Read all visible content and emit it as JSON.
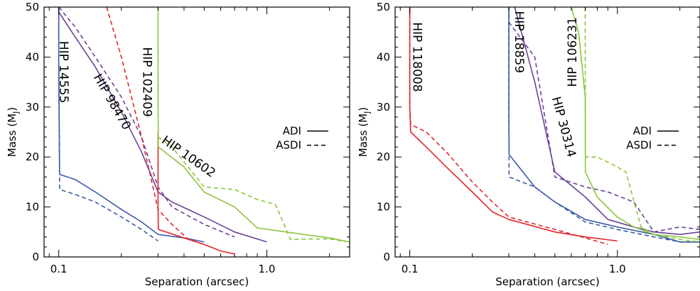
{
  "chart_data": [
    {
      "type": "line",
      "xlabel": "Separation (arcsec)",
      "ylabel": "Mass (M",
      "ylabel_sub": "J",
      "ylabel_close": ")",
      "x_scale": "log",
      "xlim": [
        0.085,
        2.5
      ],
      "ylim": [
        0,
        50
      ],
      "x_ticks": [
        {
          "value": 0.1,
          "label": "0.1"
        },
        {
          "value": 1.0,
          "label": "1.0"
        }
      ],
      "y_ticks": [
        0,
        10,
        20,
        30,
        40,
        50
      ],
      "legend": {
        "position": "right",
        "entries": [
          {
            "label": "ADI",
            "style": "solid"
          },
          {
            "label": "ASDI",
            "style": "dashed"
          }
        ]
      },
      "series": [
        {
          "name": "HIP 14555",
          "method": "ADI",
          "color": "#3b5ba8",
          "x": [
            0.1,
            0.1,
            0.1,
            0.101,
            0.12,
            0.15,
            0.2,
            0.25,
            0.3,
            0.4,
            0.5
          ],
          "y": [
            50,
            45,
            38,
            16.5,
            15.5,
            13,
            9.5,
            7,
            4.5,
            3.8,
            3.0
          ]
        },
        {
          "name": "HIP 14555",
          "method": "ASDI",
          "color": "#3b5ba8",
          "x": [
            0.1,
            0.1,
            0.1,
            0.101,
            0.12,
            0.15,
            0.2,
            0.25,
            0.3
          ],
          "y": [
            50,
            45,
            38,
            13.5,
            12.5,
            11,
            8,
            5.5,
            3.2
          ]
        },
        {
          "name": "HIP 98470",
          "method": "ADI",
          "color": "#6b4298",
          "x": [
            0.1,
            0.12,
            0.15,
            0.2,
            0.25,
            0.3,
            0.35,
            0.5,
            0.7,
            1.0
          ],
          "y": [
            49,
            44,
            38,
            29,
            21,
            13,
            11,
            8,
            5,
            3.0
          ]
        },
        {
          "name": "HIP 98470",
          "method": "ASDI",
          "color": "#6b4298",
          "x": [
            0.1,
            0.12,
            0.15,
            0.2,
            0.25,
            0.3,
            0.35,
            0.5,
            0.7
          ],
          "y": [
            50,
            46,
            40,
            32,
            24,
            14,
            10,
            6.5,
            4.0
          ]
        },
        {
          "name": "HIP 102409",
          "method": "ADI",
          "color": "#e3262a",
          "x": [
            0.3,
            0.3,
            0.3,
            0.301,
            0.4,
            0.5,
            0.6,
            0.7
          ],
          "y": [
            25,
            15,
            10,
            5.5,
            3.8,
            2.5,
            1.2,
            0.6
          ]
        },
        {
          "name": "HIP 102409",
          "method": "ASDI",
          "color": "#e3262a",
          "x": [
            0.17,
            0.2,
            0.25,
            0.3,
            0.35,
            0.42,
            0.5
          ],
          "y": [
            50,
            40,
            24,
            9.5,
            6.5,
            3.5,
            2.5
          ]
        },
        {
          "name": "HIP 10602",
          "method": "ADI",
          "color": "#8cc63f",
          "x": [
            0.3,
            0.3,
            0.301,
            0.4,
            0.5,
            0.7,
            0.9,
            1.5,
            2.0,
            2.5
          ],
          "y": [
            50,
            32,
            22,
            18,
            13,
            10,
            5.8,
            4.5,
            3.8,
            3.0
          ]
        },
        {
          "name": "HIP 10602",
          "method": "ASDI",
          "color": "#8cc63f",
          "x": [
            0.3,
            0.35,
            0.5,
            0.7,
            0.9,
            1.1,
            1.3,
            1.6,
            2.0,
            2.5
          ],
          "y": [
            24,
            22,
            14,
            13.5,
            11.5,
            10.5,
            3.5,
            3.6,
            3.6,
            3.0
          ]
        }
      ],
      "series_labels": [
        {
          "text": "HIP 14555",
          "color": "#3b5ba8",
          "x": 0.105,
          "y": 37,
          "rotate": 90
        },
        {
          "text": "HIP 98470",
          "color": "#6b4298",
          "x": 0.18,
          "y": 31,
          "rotate": 60
        },
        {
          "text": "HIP 102409",
          "color": "#e3262a",
          "x": 0.265,
          "y": 35,
          "rotate": 90
        },
        {
          "text": "HIP 10602",
          "color": "#8cc63f",
          "x": 0.42,
          "y": 20,
          "rotate": 35
        }
      ]
    },
    {
      "type": "line",
      "xlabel": "Separation (arcsec)",
      "ylabel": "Mass (M",
      "ylabel_sub": "J",
      "ylabel_close": ")",
      "x_scale": "log",
      "xlim": [
        0.085,
        2.5
      ],
      "ylim": [
        0,
        50
      ],
      "x_ticks": [
        {
          "value": 0.1,
          "label": "0.1"
        },
        {
          "value": 1.0,
          "label": "1.0"
        }
      ],
      "y_ticks": [
        0,
        10,
        20,
        30,
        40,
        50
      ],
      "legend": {
        "position": "right",
        "entries": [
          {
            "label": "ADI",
            "style": "solid"
          },
          {
            "label": "ASDI",
            "style": "dashed"
          }
        ]
      },
      "series": [
        {
          "name": "HIP 118008",
          "method": "ADI",
          "color": "#e3262a",
          "x": [
            0.1,
            0.1,
            0.101,
            0.12,
            0.15,
            0.2,
            0.25,
            0.3,
            0.5,
            0.7,
            1.0
          ],
          "y": [
            50,
            30,
            25,
            22,
            18,
            13,
            9,
            7.5,
            5,
            4,
            3.2
          ]
        },
        {
          "name": "HIP 118008",
          "method": "ASDI",
          "color": "#e3262a",
          "x": [
            0.1,
            0.1,
            0.101,
            0.12,
            0.15,
            0.2,
            0.25,
            0.3,
            0.5,
            0.7,
            0.9
          ],
          "y": [
            50,
            30,
            26.5,
            25,
            21,
            15,
            11,
            8,
            5.5,
            3.8,
            2.5
          ]
        },
        {
          "name": "HIP 18859",
          "method": "ADI",
          "color": "#3b5ba8",
          "x": [
            0.3,
            0.3,
            0.301,
            0.4,
            0.5,
            0.7,
            1.0,
            1.5,
            2.0,
            2.5
          ],
          "y": [
            50,
            30,
            20.5,
            14,
            11,
            7.5,
            6,
            4.5,
            3.0,
            3.0
          ]
        },
        {
          "name": "HIP 18859",
          "method": "ASDI",
          "color": "#3b5ba8",
          "x": [
            0.3,
            0.3,
            0.301,
            0.4,
            0.5,
            0.7,
            1.0,
            1.5,
            2.0,
            2.5
          ],
          "y": [
            50,
            30,
            16,
            14,
            11,
            7,
            5.5,
            4.0,
            3.0,
            3.0
          ]
        },
        {
          "name": "HIP 30314",
          "method": "ADI",
          "color": "#6b4298",
          "x": [
            0.32,
            0.4,
            0.5,
            0.7,
            0.9,
            1.2,
            1.5,
            2.0,
            2.5
          ],
          "y": [
            50,
            35,
            17,
            12,
            7.5,
            6,
            5,
            4.5,
            5.0
          ]
        },
        {
          "name": "HIP 30314",
          "method": "ASDI",
          "color": "#6b4298",
          "x": [
            0.3,
            0.4,
            0.5,
            0.7,
            0.9,
            1.2,
            1.5,
            2.0,
            2.5
          ],
          "y": [
            47,
            40,
            16,
            14,
            13,
            11,
            5,
            6,
            5.5
          ]
        },
        {
          "name": "HIP 106231",
          "method": "ADI",
          "color": "#8cc63f",
          "x": [
            0.6,
            0.65,
            0.7,
            0.701,
            0.8,
            1.0,
            1.2,
            1.5,
            2.0,
            2.5
          ],
          "y": [
            50,
            45,
            32,
            17,
            12,
            8,
            6,
            4.5,
            4.0,
            3.5
          ]
        },
        {
          "name": "HIP 106231",
          "method": "ASDI",
          "color": "#8cc63f",
          "x": [
            0.7,
            0.7,
            0.701,
            0.8,
            1.0,
            1.1,
            1.3,
            1.5,
            2.0,
            2.5
          ],
          "y": [
            50,
            45,
            20,
            20,
            18,
            17,
            6,
            4.5,
            3.5,
            3.0
          ]
        }
      ],
      "series_labels": [
        {
          "text": "HIP 118008",
          "color": "#e3262a",
          "x": 0.108,
          "y": 40,
          "rotate": 90
        },
        {
          "text": "HIP 18859",
          "color": "#3b5ba8",
          "x": 0.335,
          "y": 43,
          "rotate": 90
        },
        {
          "text": "HIP 106231",
          "color": "#8cc63f",
          "x": 0.61,
          "y": 41,
          "rotate": -90
        },
        {
          "text": "HIP 30314",
          "color": "#6b4298",
          "x": 0.55,
          "y": 26,
          "rotate": 75
        }
      ]
    }
  ]
}
